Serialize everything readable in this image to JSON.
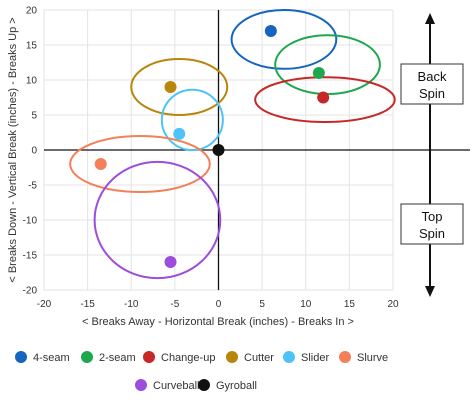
{
  "chart_data": {
    "type": "scatter",
    "xlabel": "< Breaks Away - Horizontal Break (inches) - Breaks In >",
    "ylabel": "< Breaks Down - Vertical Break (inches) - Breaks Up >",
    "xlim": [
      -20,
      20
    ],
    "ylim": [
      -20,
      20
    ],
    "x_ticks": [
      -20,
      -15,
      -10,
      -5,
      0,
      5,
      10,
      15,
      20
    ],
    "y_ticks": [
      -20,
      -15,
      -10,
      -5,
      0,
      5,
      10,
      15,
      20
    ],
    "grid": true,
    "legend_position": "bottom",
    "series": [
      {
        "name": "4-seam",
        "color": "#1565C0",
        "x": 6,
        "y": 17,
        "ellipse": {
          "cx": 7.5,
          "cy": 15.8,
          "rx": 6,
          "ry": 4.2
        }
      },
      {
        "name": "2-seam",
        "color": "#1DA84E",
        "x": 11.5,
        "y": 11,
        "ellipse": {
          "cx": 12.5,
          "cy": 12.2,
          "rx": 6,
          "ry": 4.2
        }
      },
      {
        "name": "Change-up",
        "color": "#C62828",
        "x": 12,
        "y": 7.5,
        "ellipse": {
          "cx": 12.2,
          "cy": 7.2,
          "rx": 8,
          "ry": 3.2
        }
      },
      {
        "name": "Cutter",
        "color": "#B8860B",
        "x": -5.5,
        "y": 9,
        "ellipse": {
          "cx": -4.5,
          "cy": 9,
          "rx": 5.5,
          "ry": 4
        }
      },
      {
        "name": "Slider",
        "color": "#4FC3F7",
        "x": -4.5,
        "y": 2.3,
        "ellipse": {
          "cx": -3,
          "cy": 4.3,
          "rx": 3.5,
          "ry": 4.3
        }
      },
      {
        "name": "Slurve",
        "color": "#F4805A",
        "x": -13.5,
        "y": -2,
        "ellipse": {
          "cx": -9,
          "cy": -2,
          "rx": 8,
          "ry": 4
        }
      },
      {
        "name": "Curveball",
        "color": "#9C4DDB",
        "x": -5.5,
        "y": -16,
        "ellipse": {
          "cx": -7,
          "cy": -10,
          "rx": 7.2,
          "ry": 8.3
        }
      },
      {
        "name": "Gyroball",
        "color": "#111111",
        "x": 0,
        "y": 0
      }
    ],
    "annotations": {
      "back_spin": [
        "Back",
        "Spin"
      ],
      "top_spin": [
        "Top",
        "Spin"
      ]
    }
  }
}
